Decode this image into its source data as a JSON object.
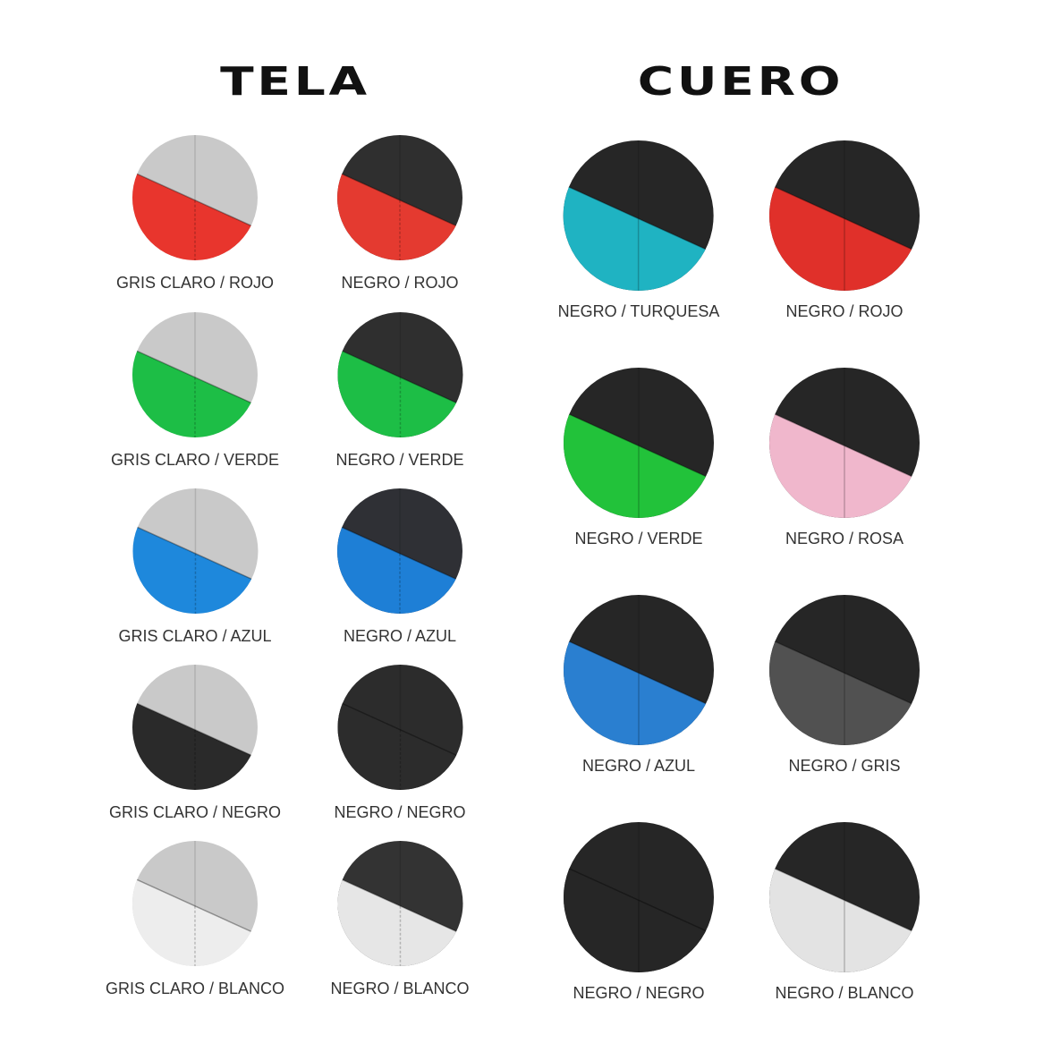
{
  "tela": {
    "title": "TELA",
    "swatches": [
      {
        "label": "GRIS CLARO / ROJO",
        "top": "#c9c9c9",
        "bottom": "#e8352d"
      },
      {
        "label": "NEGRO / ROJO",
        "top": "#2f2f2f",
        "bottom": "#e43a30"
      },
      {
        "label": "GRIS CLARO / VERDE",
        "top": "#c9c9c9",
        "bottom": "#1dbe46"
      },
      {
        "label": "NEGRO / VERDE",
        "top": "#2f2f2f",
        "bottom": "#1dbe46"
      },
      {
        "label": "GRIS CLARO / AZUL",
        "top": "#c9c9c9",
        "bottom": "#1e88dc"
      },
      {
        "label": "NEGRO / AZUL",
        "top": "#2f3035",
        "bottom": "#1e7fd6"
      },
      {
        "label": "GRIS CLARO / NEGRO",
        "top": "#c9c9c9",
        "bottom": "#2a2a2a"
      },
      {
        "label": "NEGRO / NEGRO",
        "top": "#2c2c2c",
        "bottom": "#2c2c2c"
      },
      {
        "label": "GRIS CLARO / BLANCO",
        "top": "#c9c9c9",
        "bottom": "#ededed"
      },
      {
        "label": "NEGRO / BLANCO",
        "top": "#333333",
        "bottom": "#e6e6e6"
      }
    ]
  },
  "cuero": {
    "title": "CUERO",
    "swatches": [
      {
        "label": "NEGRO / TURQUESA",
        "top": "#262626",
        "bottom": "#1fb3c2"
      },
      {
        "label": "NEGRO / ROJO",
        "top": "#262626",
        "bottom": "#e0302a"
      },
      {
        "label": "NEGRO / VERDE",
        "top": "#262626",
        "bottom": "#22c23a"
      },
      {
        "label": "NEGRO / ROSA",
        "top": "#262626",
        "bottom": "#f0b7cc"
      },
      {
        "label": "NEGRO / AZUL",
        "top": "#262626",
        "bottom": "#2a7fd0"
      },
      {
        "label": "NEGRO / GRIS",
        "top": "#262626",
        "bottom": "#515151"
      },
      {
        "label": "NEGRO / NEGRO",
        "top": "#262626",
        "bottom": "#262626"
      },
      {
        "label": "NEGRO / BLANCO",
        "top": "#262626",
        "bottom": "#e3e3e3"
      }
    ]
  }
}
